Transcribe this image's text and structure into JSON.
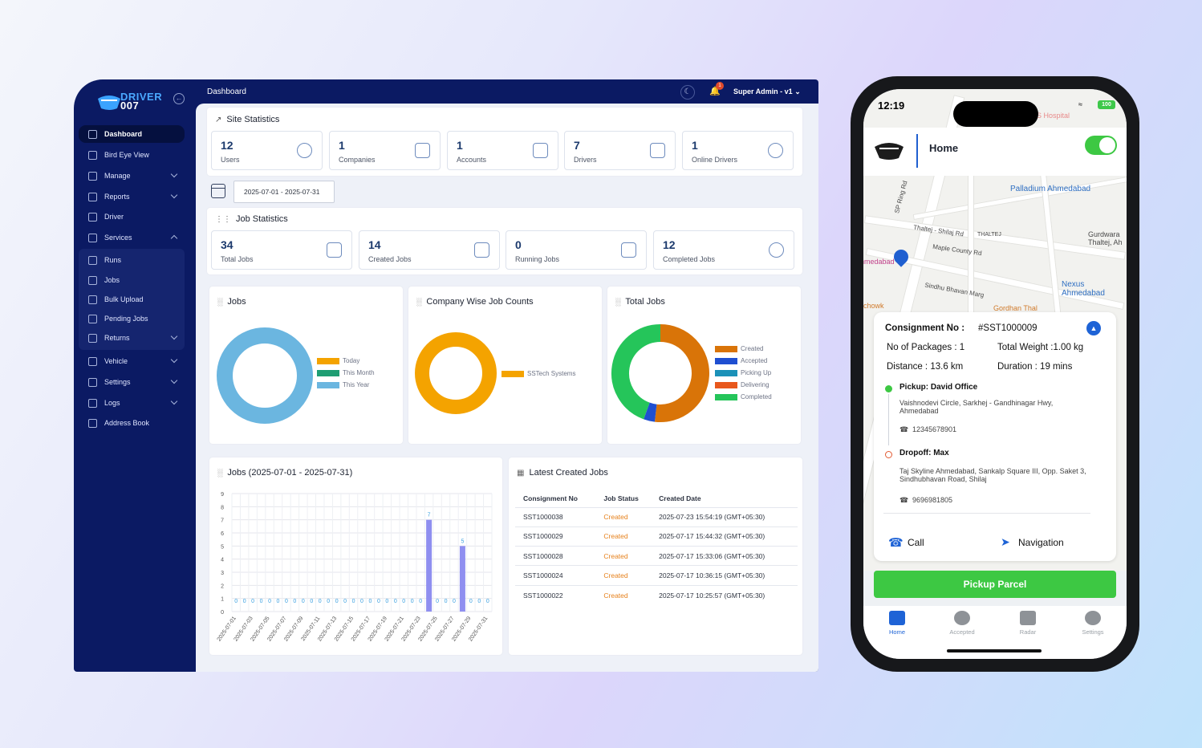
{
  "brand": {
    "line1": "DRIVER",
    "line2": "007"
  },
  "topbar": {
    "title": "Dashboard",
    "notif_count": "1",
    "user": "Super Admin - v1"
  },
  "sidebar": {
    "items": [
      {
        "label": "Dashboard",
        "active": true
      },
      {
        "label": "Bird Eye View"
      },
      {
        "label": "Manage",
        "chevron": "down"
      },
      {
        "label": "Reports",
        "chevron": "down"
      },
      {
        "label": "Driver"
      },
      {
        "label": "Services",
        "chevron": "up"
      },
      {
        "label": "Runs"
      },
      {
        "label": "Jobs"
      },
      {
        "label": "Bulk Upload"
      },
      {
        "label": "Pending Jobs"
      },
      {
        "label": "Returns",
        "chevron": "down"
      },
      {
        "label": "Vehicle",
        "chevron": "down"
      },
      {
        "label": "Settings",
        "chevron": "down"
      },
      {
        "label": "Logs",
        "chevron": "down"
      },
      {
        "label": "Address Book"
      }
    ]
  },
  "site_stats": {
    "title": "Site Statistics",
    "items": [
      {
        "value": "12",
        "label": "Users",
        "icon": "users-icon"
      },
      {
        "value": "1",
        "label": "Companies",
        "icon": "building-icon"
      },
      {
        "value": "1",
        "label": "Accounts",
        "icon": "account-icon"
      },
      {
        "value": "7",
        "label": "Drivers",
        "icon": "truck-icon"
      },
      {
        "value": "1",
        "label": "Online Drivers",
        "icon": "user-check-icon"
      }
    ]
  },
  "date_range": "2025-07-01 - 2025-07-31",
  "job_stats": {
    "title": "Job Statistics",
    "items": [
      {
        "value": "34",
        "label": "Total Jobs",
        "icon": "box-icon"
      },
      {
        "value": "14",
        "label": "Created Jobs",
        "icon": "plus-square-icon"
      },
      {
        "value": "0",
        "label": "Running Jobs",
        "icon": "car-icon"
      },
      {
        "value": "12",
        "label": "Completed Jobs",
        "icon": "check-circle-icon"
      }
    ]
  },
  "charts": {
    "jobs_title": "Jobs",
    "company_title": "Company Wise Job Counts",
    "total_title": "Total Jobs",
    "bar_title": "Jobs (2025-07-01 - 2025-07-31)"
  },
  "chart_data": [
    {
      "type": "pie",
      "title": "Jobs",
      "labels": [
        "Today",
        "This Month",
        "This Year"
      ],
      "colors": [
        "#f4a300",
        "#1f9e73",
        "#6bb6e0"
      ],
      "values": [
        0,
        0,
        1
      ]
    },
    {
      "type": "pie",
      "title": "Company Wise Job Counts",
      "labels": [
        "SSTech Systems"
      ],
      "colors": [
        "#f4a300"
      ],
      "values": [
        1
      ]
    },
    {
      "type": "pie",
      "title": "Total Jobs",
      "labels": [
        "Created",
        "Accepted",
        "Picking Up",
        "Delivering",
        "Completed"
      ],
      "colors": [
        "#d97408",
        "#1f4fd1",
        "#1b91b8",
        "#e8581c",
        "#25c55a"
      ],
      "values": [
        14,
        1,
        0,
        0,
        12
      ]
    },
    {
      "type": "bar",
      "title": "Jobs (2025-07-01 - 2025-07-31)",
      "ylim": [
        0,
        9
      ],
      "yticks": [
        0,
        1,
        2,
        3,
        4,
        5,
        6,
        7,
        8,
        9
      ],
      "categories": [
        "2025-07-01",
        "2025-07-02",
        "2025-07-03",
        "2025-07-04",
        "2025-07-05",
        "2025-07-06",
        "2025-07-07",
        "2025-07-08",
        "2025-07-09",
        "2025-07-10",
        "2025-07-11",
        "2025-07-12",
        "2025-07-13",
        "2025-07-14",
        "2025-07-15",
        "2025-07-16",
        "2025-07-17",
        "2025-07-18",
        "2025-07-19",
        "2025-07-20",
        "2025-07-21",
        "2025-07-22",
        "2025-07-23",
        "2025-07-24",
        "2025-07-25",
        "2025-07-26",
        "2025-07-27",
        "2025-07-28",
        "2025-07-29",
        "2025-07-30",
        "2025-07-31"
      ],
      "values": [
        0,
        0,
        0,
        0,
        0,
        0,
        0,
        0,
        0,
        0,
        0,
        0,
        0,
        0,
        0,
        0,
        0,
        0,
        0,
        0,
        0,
        0,
        0,
        7,
        0,
        0,
        0,
        5,
        0,
        0,
        0
      ],
      "x_tick_labels": [
        "2025-07-01",
        "2025-07-03",
        "2025-07-05",
        "2025-07-07",
        "2025-07-09",
        "2025-07-11",
        "2025-07-13",
        "2025-07-15",
        "2025-07-17",
        "2025-07-19",
        "2025-07-21",
        "2025-07-23",
        "2025-07-25",
        "2025-07-27",
        "2025-07-29",
        "2025-07-31"
      ],
      "color": "#8f8ff0"
    }
  ],
  "latest_jobs": {
    "title": "Latest Created Jobs",
    "headers": [
      "Consignment No",
      "Job Status",
      "Created Date"
    ],
    "rows": [
      [
        "SST1000038",
        "Created",
        "2025-07-23 15:54:19 (GMT+05:30)"
      ],
      [
        "SST1000029",
        "Created",
        "2025-07-17 15:44:32 (GMT+05:30)"
      ],
      [
        "SST1000028",
        "Created",
        "2025-07-17 15:33:06 (GMT+05:30)"
      ],
      [
        "SST1000024",
        "Created",
        "2025-07-17 10:36:15 (GMT+05:30)"
      ],
      [
        "SST1000022",
        "Created",
        "2025-07-17 10:25:57 (GMT+05:30)"
      ]
    ]
  },
  "phone": {
    "time": "12:19",
    "battery": "100",
    "header": "Home",
    "map_labels": [
      "S Hospital",
      "SP Ring Rd",
      "Palladium Ahmedabad",
      "Thaltej - Shilaj Rd",
      "THALTEJ",
      "Gurdwara Thaltej, Ah",
      "Maple County Rd",
      "Sindhu Bhavan Marg",
      "Nexus Ahmedabad",
      "Gordhan Thal",
      "hmedabad",
      "chowk"
    ],
    "consignment_label": "Consignment No :",
    "consignment_no": "#SST1000009",
    "packages": "No of Packages :  1",
    "weight": "Total Weight :1.00 kg",
    "distance": "Distance :  13.6 km",
    "duration": "Duration :  19 mins",
    "pickup_title": "Pickup: David Office",
    "pickup_addr": "Vaishnodevi Circle, Sarkhej - Gandhinagar Hwy, Ahmedabad",
    "pickup_phone": "12345678901",
    "drop_title": "Dropoff: Max",
    "drop_addr": "Taj Skyline Ahmedabad, Sankalp Square III, Opp. Saket 3, Sindhubhavan Road, Shilaj",
    "drop_phone": "9696981805",
    "call": "Call",
    "navigation": "Navigation",
    "pickup_btn": "Pickup Parcel",
    "tabs": [
      "Home",
      "Accepted",
      "Radar",
      "Settings"
    ]
  }
}
